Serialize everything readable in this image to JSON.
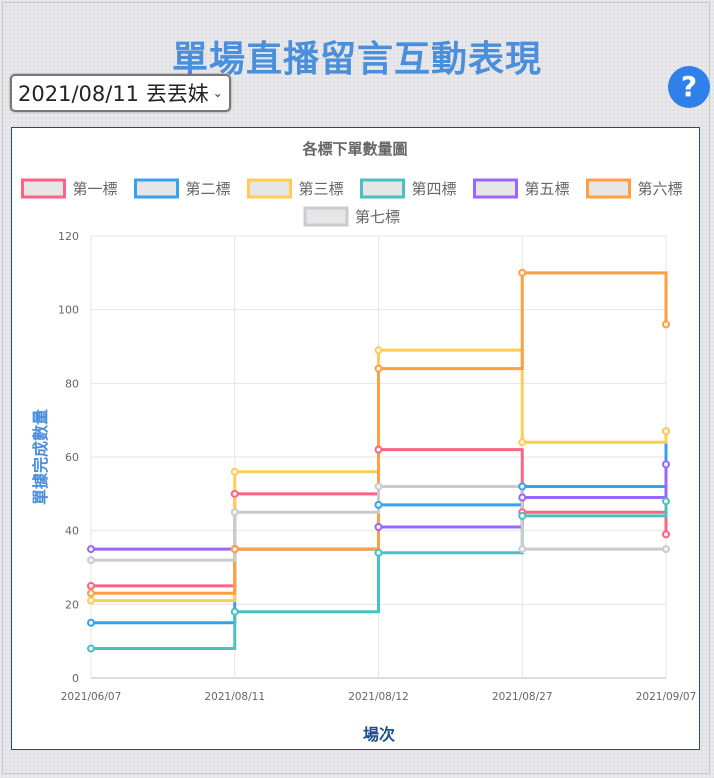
{
  "page": {
    "title": "單場直播留言互動表現",
    "selector_value": "2021/08/11 丟丟妹",
    "help_label": "?"
  },
  "chart_data": {
    "type": "line",
    "stepped": true,
    "title": "各標下單數量圖",
    "xlabel": "場次",
    "ylabel": "單據完成數量",
    "x": [
      "2021/06/07",
      "2021/08/11",
      "2021/08/12",
      "2021/08/27",
      "2021/09/07"
    ],
    "ylim": [
      0,
      120
    ],
    "yticks": [
      0,
      20,
      40,
      60,
      80,
      100,
      120
    ],
    "grid": true,
    "legend_position": "top",
    "series": [
      {
        "name": "第一標",
        "color": "#ff6384",
        "values": [
          25,
          50,
          62,
          45,
          39
        ]
      },
      {
        "name": "第二標",
        "color": "#36a2eb",
        "values": [
          15,
          35,
          47,
          52,
          67
        ]
      },
      {
        "name": "第三標",
        "color": "#ffcd56",
        "values": [
          21,
          56,
          89,
          64,
          67
        ]
      },
      {
        "name": "第四標",
        "color": "#4bc0c0",
        "values": [
          8,
          18,
          34,
          44,
          48
        ]
      },
      {
        "name": "第五標",
        "color": "#9966ff",
        "values": [
          35,
          35,
          41,
          49,
          58
        ]
      },
      {
        "name": "第六標",
        "color": "#ff9f40",
        "values": [
          23,
          35,
          84,
          110,
          96
        ]
      },
      {
        "name": "第七標",
        "color": "#c9cbcf",
        "values": [
          32,
          45,
          52,
          35,
          35
        ]
      }
    ]
  }
}
